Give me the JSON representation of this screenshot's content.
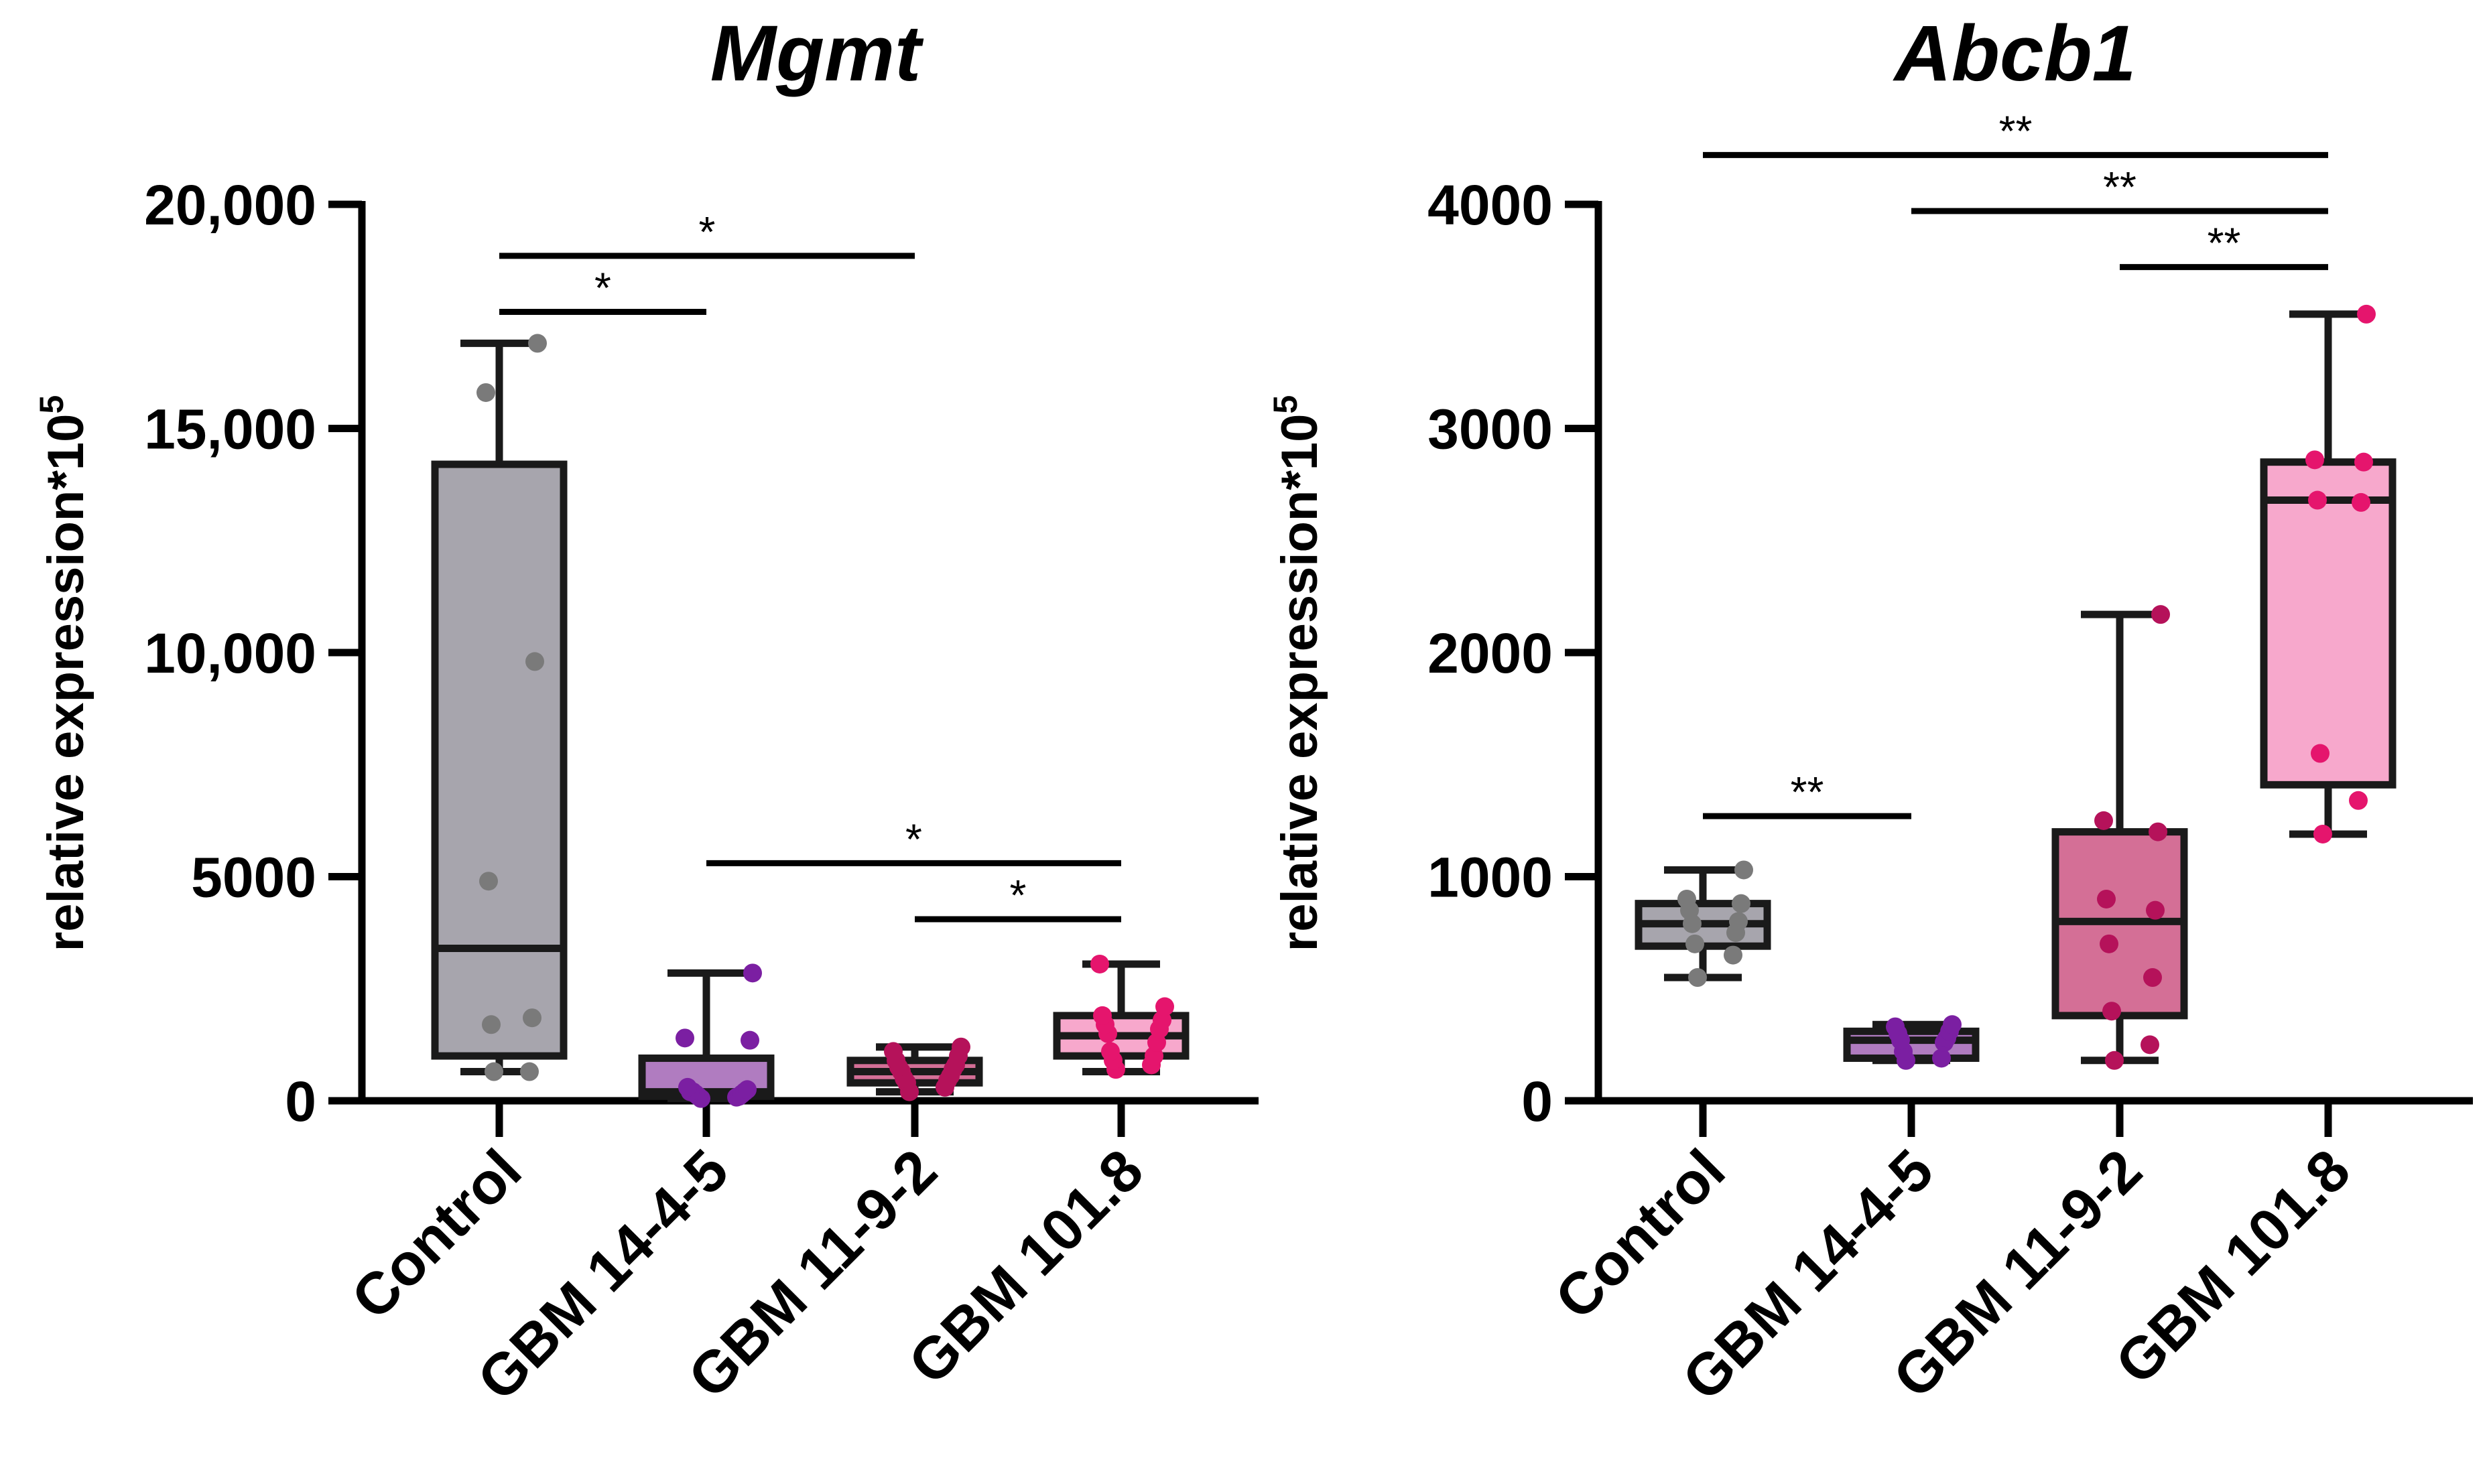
{
  "chart_data": [
    {
      "type": "box",
      "title": "Mgmt",
      "ylabel": "relative expression*10",
      "ylabel_superscript": "5",
      "xlabel": "",
      "ylim": [
        0,
        20000
      ],
      "yticks": [
        0,
        5000,
        10000,
        15000,
        20000
      ],
      "ytick_labels": [
        "0",
        "5000",
        "10,000",
        "15,000",
        "20,000"
      ],
      "categories": [
        "Control",
        "GBM 14-4-5",
        "GBM 11-9-2",
        "GBM 101.8"
      ],
      "series": [
        {
          "name": "Control",
          "color": "#7a7a7a",
          "fill": "#a7a5ad",
          "whisker_low": 650,
          "q1": 1000,
          "median": 3400,
          "q3": 14200,
          "whisker_high": 16900,
          "points": [
            650,
            650,
            1700,
            1850,
            4900,
            9800,
            15800,
            16900
          ]
        },
        {
          "name": "GBM 14-4-5",
          "color": "#7b1fa2",
          "fill": "#b07cc0",
          "whisker_low": 50,
          "q1": 100,
          "median": 200,
          "q3": 950,
          "whisker_high": 2850,
          "points": [
            50,
            80,
            100,
            100,
            150,
            150,
            200,
            200,
            200,
            250,
            300,
            1350,
            1400,
            2850
          ]
        },
        {
          "name": "GBM 11-9-2",
          "color": "#b5125a",
          "fill": "#d46f96",
          "whisker_low": 200,
          "q1": 400,
          "median": 650,
          "q3": 900,
          "whisker_high": 1200,
          "points": [
            200,
            300,
            400,
            450,
            500,
            550,
            650,
            700,
            750,
            800,
            900,
            1000,
            1100,
            1200
          ]
        },
        {
          "name": "GBM 101.8",
          "color": "#e5156d",
          "fill": "#f7a8cc",
          "whisker_low": 650,
          "q1": 1000,
          "median": 1450,
          "q3": 1900,
          "whisker_high": 3050,
          "points": [
            700,
            800,
            900,
            1000,
            1100,
            1300,
            1500,
            1600,
            1700,
            1800,
            1900,
            2100,
            3050
          ]
        }
      ],
      "significance": [
        {
          "from": "Control",
          "to": "GBM 14-4-5",
          "label": "*",
          "y": 17600
        },
        {
          "from": "Control",
          "to": "GBM 11-9-2",
          "label": "*",
          "y": 18850
        },
        {
          "from": "GBM 14-4-5",
          "to": "GBM 101.8",
          "label": "*",
          "y": 5300
        },
        {
          "from": "GBM 11-9-2",
          "to": "GBM 101.8",
          "label": "*",
          "y": 4050
        }
      ]
    },
    {
      "type": "box",
      "title": "Abcb1",
      "ylabel": "relative expression*10",
      "ylabel_superscript": "5",
      "xlabel": "",
      "ylim": [
        0,
        4000
      ],
      "yticks": [
        0,
        1000,
        2000,
        3000,
        4000
      ],
      "ytick_labels": [
        "0",
        "1000",
        "2000",
        "3000",
        "4000"
      ],
      "categories": [
        "Control",
        "GBM 14-4-5",
        "GBM 11-9-2",
        "GBM 101.8"
      ],
      "series": [
        {
          "name": "Control",
          "color": "#7a7a7a",
          "fill": "#a7a5ad",
          "whisker_low": 550,
          "q1": 690,
          "median": 790,
          "q3": 880,
          "whisker_high": 1030,
          "points": [
            550,
            650,
            700,
            750,
            790,
            800,
            850,
            880,
            900,
            1030
          ]
        },
        {
          "name": "GBM 14-4-5",
          "color": "#7b1fa2",
          "fill": "#b07cc0",
          "whisker_low": 180,
          "q1": 190,
          "median": 270,
          "q3": 310,
          "whisker_high": 340,
          "points": [
            180,
            190,
            220,
            260,
            270,
            280,
            300,
            310,
            330,
            340
          ]
        },
        {
          "name": "GBM 11-9-2",
          "color": "#b5125a",
          "fill": "#d46f96",
          "whisker_low": 180,
          "q1": 380,
          "median": 800,
          "q3": 1200,
          "whisker_high": 2170,
          "points": [
            180,
            250,
            400,
            550,
            700,
            850,
            900,
            1200,
            1250,
            2170
          ]
        },
        {
          "name": "GBM 101.8",
          "color": "#e5156d",
          "fill": "#f7a8cc",
          "whisker_low": 1190,
          "q1": 1410,
          "median": 2680,
          "q3": 2850,
          "whisker_high": 3510,
          "points": [
            1190,
            1340,
            1550,
            2670,
            2680,
            2850,
            2860,
            3510
          ]
        }
      ],
      "significance": [
        {
          "from": "Control",
          "to": "GBM 101.8",
          "label": "**",
          "y": 4220
        },
        {
          "from": "GBM 14-4-5",
          "to": "GBM 101.8",
          "label": "**",
          "y": 3970
        },
        {
          "from": "GBM 11-9-2",
          "to": "GBM 101.8",
          "label": "**",
          "y": 3720
        },
        {
          "from": "Control",
          "to": "GBM 14-4-5",
          "label": "**",
          "y": 1270
        }
      ]
    }
  ]
}
